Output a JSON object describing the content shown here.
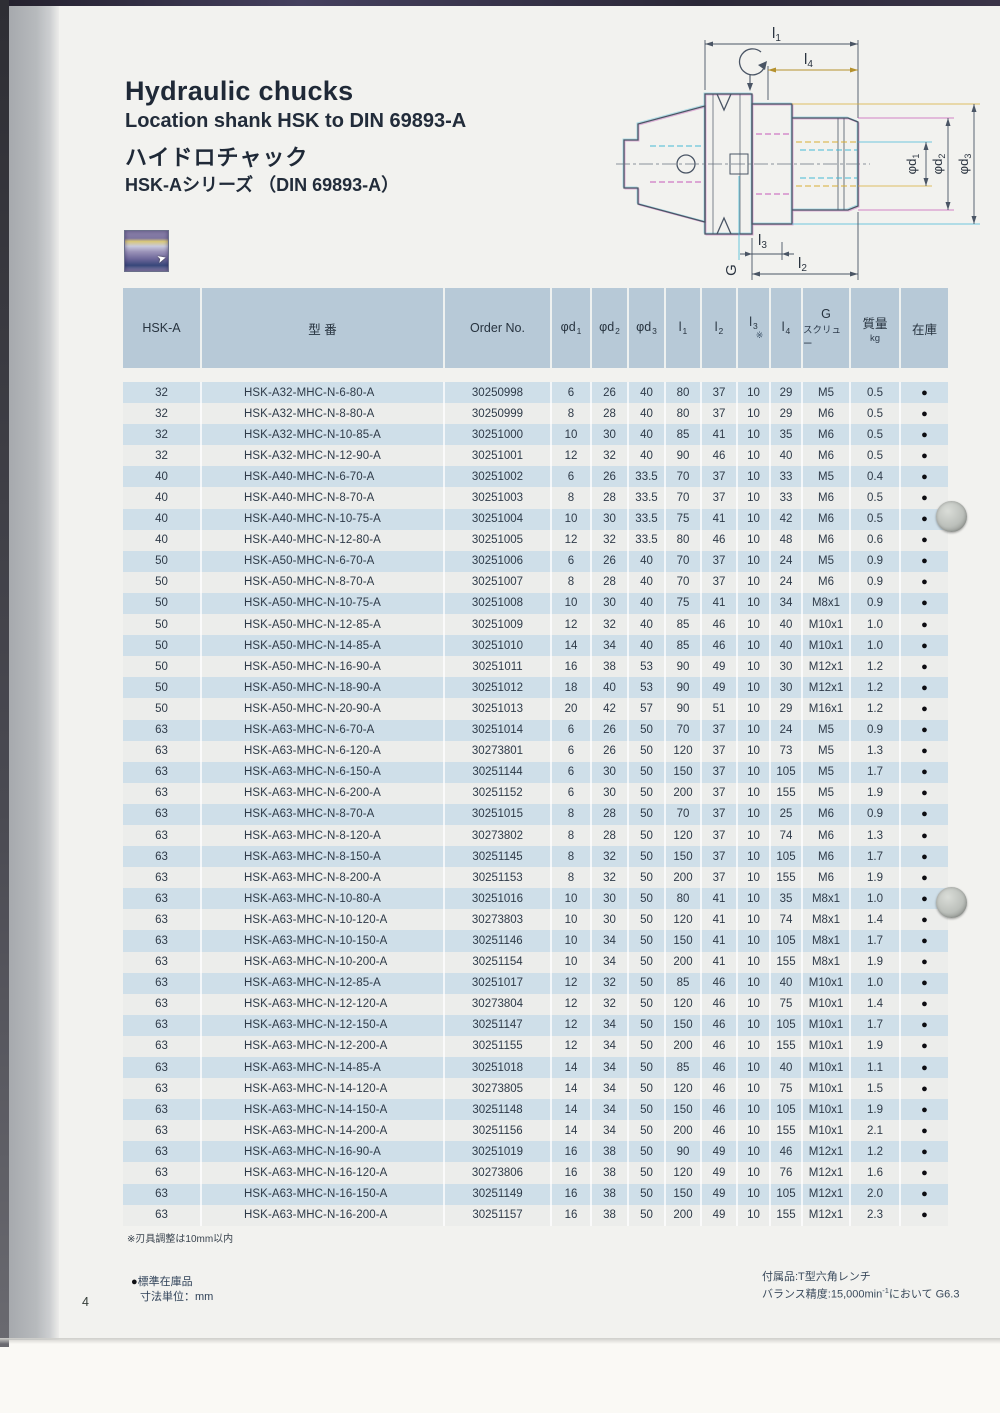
{
  "page": {
    "title_en": "Hydraulic chucks",
    "subtitle_en": "Location shank HSK to DIN 69893-A",
    "title_ja": "ハイドロチャック",
    "subtitle_ja": "HSK-Aシリーズ （DIN 69893-A）",
    "page_number": "4"
  },
  "drawing": {
    "dims": {
      "l1": {
        "base": "l",
        "sub": "1"
      },
      "l2": {
        "base": "l",
        "sub": "2"
      },
      "l3": {
        "base": "l",
        "sub": "3"
      },
      "l4": {
        "base": "l",
        "sub": "4"
      },
      "d1": {
        "base": "φd",
        "sub": "1"
      },
      "d2": {
        "base": "φd",
        "sub": "2"
      },
      "d3": {
        "base": "φd",
        "sub": "3"
      },
      "g": {
        "base": "G",
        "sub": ""
      }
    }
  },
  "table": {
    "headers": [
      {
        "label": "HSK-A"
      },
      {
        "label": "型 番"
      },
      {
        "label": "Order No."
      },
      {
        "label": "φd",
        "sub": "1"
      },
      {
        "label": "φd",
        "sub": "2"
      },
      {
        "label": "φd",
        "sub": "3"
      },
      {
        "label": "l",
        "sub": "1"
      },
      {
        "label": "l",
        "sub": "2"
      },
      {
        "label": "l",
        "sub": "3",
        "note": "※"
      },
      {
        "label": "l",
        "sub": "4"
      },
      {
        "label": "G",
        "line2": "スクリュー"
      },
      {
        "label": "質量",
        "line2": "kg"
      },
      {
        "label": "在庫"
      }
    ],
    "rows": [
      [
        "32",
        "HSK-A32-MHC-N-6-80-A",
        "30250998",
        "6",
        "26",
        "40",
        "80",
        "37",
        "10",
        "29",
        "M5",
        "0.5",
        "●"
      ],
      [
        "32",
        "HSK-A32-MHC-N-8-80-A",
        "30250999",
        "8",
        "28",
        "40",
        "80",
        "37",
        "10",
        "29",
        "M6",
        "0.5",
        "●"
      ],
      [
        "32",
        "HSK-A32-MHC-N-10-85-A",
        "30251000",
        "10",
        "30",
        "40",
        "85",
        "41",
        "10",
        "35",
        "M6",
        "0.5",
        "●"
      ],
      [
        "32",
        "HSK-A32-MHC-N-12-90-A",
        "30251001",
        "12",
        "32",
        "40",
        "90",
        "46",
        "10",
        "40",
        "M6",
        "0.5",
        "●"
      ],
      [
        "40",
        "HSK-A40-MHC-N-6-70-A",
        "30251002",
        "6",
        "26",
        "33.5",
        "70",
        "37",
        "10",
        "33",
        "M5",
        "0.4",
        "●"
      ],
      [
        "40",
        "HSK-A40-MHC-N-8-70-A",
        "30251003",
        "8",
        "28",
        "33.5",
        "70",
        "37",
        "10",
        "33",
        "M6",
        "0.5",
        "●"
      ],
      [
        "40",
        "HSK-A40-MHC-N-10-75-A",
        "30251004",
        "10",
        "30",
        "33.5",
        "75",
        "41",
        "10",
        "42",
        "M6",
        "0.5",
        "●"
      ],
      [
        "40",
        "HSK-A40-MHC-N-12-80-A",
        "30251005",
        "12",
        "32",
        "33.5",
        "80",
        "46",
        "10",
        "48",
        "M6",
        "0.6",
        "●"
      ],
      [
        "50",
        "HSK-A50-MHC-N-6-70-A",
        "30251006",
        "6",
        "26",
        "40",
        "70",
        "37",
        "10",
        "24",
        "M5",
        "0.9",
        "●"
      ],
      [
        "50",
        "HSK-A50-MHC-N-8-70-A",
        "30251007",
        "8",
        "28",
        "40",
        "70",
        "37",
        "10",
        "24",
        "M6",
        "0.9",
        "●"
      ],
      [
        "50",
        "HSK-A50-MHC-N-10-75-A",
        "30251008",
        "10",
        "30",
        "40",
        "75",
        "41",
        "10",
        "34",
        "M8x1",
        "0.9",
        "●"
      ],
      [
        "50",
        "HSK-A50-MHC-N-12-85-A",
        "30251009",
        "12",
        "32",
        "40",
        "85",
        "46",
        "10",
        "40",
        "M10x1",
        "1.0",
        "●"
      ],
      [
        "50",
        "HSK-A50-MHC-N-14-85-A",
        "30251010",
        "14",
        "34",
        "40",
        "85",
        "46",
        "10",
        "40",
        "M10x1",
        "1.0",
        "●"
      ],
      [
        "50",
        "HSK-A50-MHC-N-16-90-A",
        "30251011",
        "16",
        "38",
        "53",
        "90",
        "49",
        "10",
        "30",
        "M12x1",
        "1.2",
        "●"
      ],
      [
        "50",
        "HSK-A50-MHC-N-18-90-A",
        "30251012",
        "18",
        "40",
        "53",
        "90",
        "49",
        "10",
        "30",
        "M12x1",
        "1.2",
        "●"
      ],
      [
        "50",
        "HSK-A50-MHC-N-20-90-A",
        "30251013",
        "20",
        "42",
        "57",
        "90",
        "51",
        "10",
        "29",
        "M16x1",
        "1.2",
        "●"
      ],
      [
        "63",
        "HSK-A63-MHC-N-6-70-A",
        "30251014",
        "6",
        "26",
        "50",
        "70",
        "37",
        "10",
        "24",
        "M5",
        "0.9",
        "●"
      ],
      [
        "63",
        "HSK-A63-MHC-N-6-120-A",
        "30273801",
        "6",
        "26",
        "50",
        "120",
        "37",
        "10",
        "73",
        "M5",
        "1.3",
        "●"
      ],
      [
        "63",
        "HSK-A63-MHC-N-6-150-A",
        "30251144",
        "6",
        "30",
        "50",
        "150",
        "37",
        "10",
        "105",
        "M5",
        "1.7",
        "●"
      ],
      [
        "63",
        "HSK-A63-MHC-N-6-200-A",
        "30251152",
        "6",
        "30",
        "50",
        "200",
        "37",
        "10",
        "155",
        "M5",
        "1.9",
        "●"
      ],
      [
        "63",
        "HSK-A63-MHC-N-8-70-A",
        "30251015",
        "8",
        "28",
        "50",
        "70",
        "37",
        "10",
        "25",
        "M6",
        "0.9",
        "●"
      ],
      [
        "63",
        "HSK-A63-MHC-N-8-120-A",
        "30273802",
        "8",
        "28",
        "50",
        "120",
        "37",
        "10",
        "74",
        "M6",
        "1.3",
        "●"
      ],
      [
        "63",
        "HSK-A63-MHC-N-8-150-A",
        "30251145",
        "8",
        "32",
        "50",
        "150",
        "37",
        "10",
        "105",
        "M6",
        "1.7",
        "●"
      ],
      [
        "63",
        "HSK-A63-MHC-N-8-200-A",
        "30251153",
        "8",
        "32",
        "50",
        "200",
        "37",
        "10",
        "155",
        "M6",
        "1.9",
        "●"
      ],
      [
        "63",
        "HSK-A63-MHC-N-10-80-A",
        "30251016",
        "10",
        "30",
        "50",
        "80",
        "41",
        "10",
        "35",
        "M8x1",
        "1.0",
        "●"
      ],
      [
        "63",
        "HSK-A63-MHC-N-10-120-A",
        "30273803",
        "10",
        "30",
        "50",
        "120",
        "41",
        "10",
        "74",
        "M8x1",
        "1.4",
        "●"
      ],
      [
        "63",
        "HSK-A63-MHC-N-10-150-A",
        "30251146",
        "10",
        "34",
        "50",
        "150",
        "41",
        "10",
        "105",
        "M8x1",
        "1.7",
        "●"
      ],
      [
        "63",
        "HSK-A63-MHC-N-10-200-A",
        "30251154",
        "10",
        "34",
        "50",
        "200",
        "41",
        "10",
        "155",
        "M8x1",
        "1.9",
        "●"
      ],
      [
        "63",
        "HSK-A63-MHC-N-12-85-A",
        "30251017",
        "12",
        "32",
        "50",
        "85",
        "46",
        "10",
        "40",
        "M10x1",
        "1.0",
        "●"
      ],
      [
        "63",
        "HSK-A63-MHC-N-12-120-A",
        "30273804",
        "12",
        "32",
        "50",
        "120",
        "46",
        "10",
        "75",
        "M10x1",
        "1.4",
        "●"
      ],
      [
        "63",
        "HSK-A63-MHC-N-12-150-A",
        "30251147",
        "12",
        "34",
        "50",
        "150",
        "46",
        "10",
        "105",
        "M10x1",
        "1.7",
        "●"
      ],
      [
        "63",
        "HSK-A63-MHC-N-12-200-A",
        "30251155",
        "12",
        "34",
        "50",
        "200",
        "46",
        "10",
        "155",
        "M10x1",
        "1.9",
        "●"
      ],
      [
        "63",
        "HSK-A63-MHC-N-14-85-A",
        "30251018",
        "14",
        "34",
        "50",
        "85",
        "46",
        "10",
        "40",
        "M10x1",
        "1.1",
        "●"
      ],
      [
        "63",
        "HSK-A63-MHC-N-14-120-A",
        "30273805",
        "14",
        "34",
        "50",
        "120",
        "46",
        "10",
        "75",
        "M10x1",
        "1.5",
        "●"
      ],
      [
        "63",
        "HSK-A63-MHC-N-14-150-A",
        "30251148",
        "14",
        "34",
        "50",
        "150",
        "46",
        "10",
        "105",
        "M10x1",
        "1.9",
        "●"
      ],
      [
        "63",
        "HSK-A63-MHC-N-14-200-A",
        "30251156",
        "14",
        "34",
        "50",
        "200",
        "46",
        "10",
        "155",
        "M10x1",
        "2.1",
        "●"
      ],
      [
        "63",
        "HSK-A63-MHC-N-16-90-A",
        "30251019",
        "16",
        "38",
        "50",
        "90",
        "49",
        "10",
        "46",
        "M12x1",
        "1.2",
        "●"
      ],
      [
        "63",
        "HSK-A63-MHC-N-16-120-A",
        "30273806",
        "16",
        "38",
        "50",
        "120",
        "49",
        "10",
        "76",
        "M12x1",
        "1.6",
        "●"
      ],
      [
        "63",
        "HSK-A63-MHC-N-16-150-A",
        "30251149",
        "16",
        "38",
        "50",
        "150",
        "49",
        "10",
        "105",
        "M12x1",
        "2.0",
        "●"
      ],
      [
        "63",
        "HSK-A63-MHC-N-16-200-A",
        "30251157",
        "16",
        "38",
        "50",
        "200",
        "49",
        "10",
        "155",
        "M12x1",
        "2.3",
        "●"
      ]
    ]
  },
  "notes": {
    "table_note": "※刃具調整は10mm以内",
    "stock_dot": "●",
    "stock_note": "標準在庫品",
    "unit_note": "寸法単位：mm",
    "accessory_note": "付属品:T型六角レンチ",
    "balance_prefix": "バランス精度:15,000min",
    "balance_sup": "-1",
    "balance_suffix": "において G6.3"
  },
  "colors": {
    "header_bg": "#b7c9d7",
    "row_blue": "#cfdfe9",
    "row_white": "#ecedeb",
    "ink": "#2e3a48",
    "stock_dot": "#0d0d12"
  }
}
